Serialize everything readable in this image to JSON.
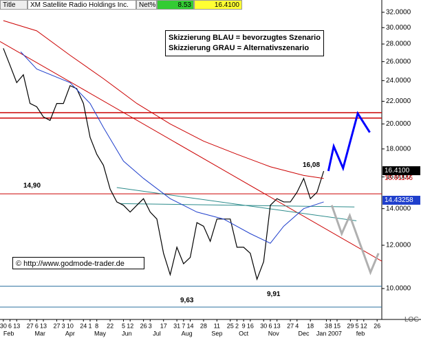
{
  "header": {
    "title_label": "Title",
    "name": "XM Satellite Radio Holdings Inc.",
    "net_label": "Net%",
    "net_value": "8.53",
    "last": "16.4100"
  },
  "legend_box": [
    "Skizzierung BLAU = bevorzugtes Szenario",
    "Skizzierung GRAU = Alternativszenario"
  ],
  "copyright": "© http://www.godmode-trader.de",
  "chart_data": {
    "type": "line",
    "log_scale": true,
    "scale_label": "LOG",
    "xlim": [
      -0.5,
      56.7
    ],
    "ylim": [
      8.78,
      33.7
    ],
    "yticks": [
      {
        "value": 10,
        "label": "10.0000"
      },
      {
        "value": 12,
        "label": "12.0000"
      },
      {
        "value": 14,
        "label": "14.0000"
      },
      {
        "value": 16,
        "label": "16.0000"
      },
      {
        "value": 18,
        "label": "18.0000"
      },
      {
        "value": 20,
        "label": "20.0000"
      },
      {
        "value": 22,
        "label": "22.0000"
      },
      {
        "value": 24,
        "label": "24.0000"
      },
      {
        "value": 26,
        "label": "26.0000"
      },
      {
        "value": 28,
        "label": "28.0000"
      },
      {
        "value": 30,
        "label": "30.0000"
      },
      {
        "value": 32,
        "label": "32.0000"
      }
    ],
    "xticks": [
      {
        "value": 0,
        "label": "30"
      },
      {
        "value": 1,
        "label": "6"
      },
      {
        "value": 2,
        "label": "13"
      },
      {
        "value": 4,
        "label": "27"
      },
      {
        "value": 5,
        "label": "6"
      },
      {
        "value": 6,
        "label": "13"
      },
      {
        "value": 8,
        "label": "27"
      },
      {
        "value": 9,
        "label": "3"
      },
      {
        "value": 10,
        "label": "10"
      },
      {
        "value": 12,
        "label": "24"
      },
      {
        "value": 13,
        "label": "1"
      },
      {
        "value": 14,
        "label": "8"
      },
      {
        "value": 16,
        "label": "22"
      },
      {
        "value": 18,
        "label": "5"
      },
      {
        "value": 19,
        "label": "12"
      },
      {
        "value": 21,
        "label": "26"
      },
      {
        "value": 22,
        "label": "3"
      },
      {
        "value": 24,
        "label": "17"
      },
      {
        "value": 26,
        "label": "31"
      },
      {
        "value": 27,
        "label": "7"
      },
      {
        "value": 28,
        "label": "14"
      },
      {
        "value": 30,
        "label": "28"
      },
      {
        "value": 32,
        "label": "11"
      },
      {
        "value": 34,
        "label": "25"
      },
      {
        "value": 35,
        "label": "2"
      },
      {
        "value": 36,
        "label": "9"
      },
      {
        "value": 37,
        "label": "16"
      },
      {
        "value": 39,
        "label": "30"
      },
      {
        "value": 40,
        "label": "6"
      },
      {
        "value": 41,
        "label": "13"
      },
      {
        "value": 43,
        "label": "27"
      },
      {
        "value": 44,
        "label": "4"
      },
      {
        "value": 46,
        "label": "18"
      },
      {
        "value": 48.4,
        "label": "3"
      },
      {
        "value": 49,
        "label": "8"
      },
      {
        "value": 50,
        "label": "15"
      },
      {
        "value": 52,
        "label": "29"
      },
      {
        "value": 53,
        "label": "5"
      },
      {
        "value": 54,
        "label": "12"
      },
      {
        "value": 56,
        "label": "26"
      }
    ],
    "months": [
      {
        "value": 0.8,
        "label": "Feb"
      },
      {
        "value": 5.5,
        "label": "Mar"
      },
      {
        "value": 10,
        "label": "Apr"
      },
      {
        "value": 14.5,
        "label": "May"
      },
      {
        "value": 18.5,
        "label": "Jun"
      },
      {
        "value": 23,
        "label": "Jul"
      },
      {
        "value": 27.5,
        "label": "Aug"
      },
      {
        "value": 32,
        "label": "Sep"
      },
      {
        "value": 36,
        "label": "Oct"
      },
      {
        "value": 40.5,
        "label": "Nov"
      },
      {
        "value": 45,
        "label": "Dec"
      },
      {
        "value": 48.8,
        "label": "Jan 2007"
      },
      {
        "value": 53.5,
        "label": "feb"
      }
    ],
    "series": [
      {
        "color": "#000000",
        "x": [
          0,
          1,
          2,
          3,
          4,
          5,
          6,
          7,
          8,
          9,
          10,
          11,
          12,
          13,
          14,
          15,
          16,
          17,
          18,
          19,
          20,
          21,
          22,
          23,
          24,
          25,
          26,
          27,
          28,
          29,
          30,
          31,
          32,
          33,
          34,
          35,
          36,
          37,
          38,
          39,
          40,
          41,
          42,
          43,
          44,
          45,
          46,
          47,
          48
        ],
        "values": [
          27.5,
          25.6,
          23.8,
          24.6,
          21.8,
          21.5,
          20.6,
          20.3,
          21.8,
          21.8,
          23.5,
          23.2,
          21.8,
          18.9,
          17.6,
          16.8,
          15.2,
          14.4,
          14.2,
          13.8,
          14.2,
          14.6,
          13.8,
          13.4,
          11.6,
          10.6,
          11.9,
          11.1,
          11.4,
          13.2,
          13.0,
          12.2,
          13.4,
          13.4,
          13.4,
          11.9,
          11.9,
          11.6,
          10.4,
          11.2,
          14.2,
          14.6,
          14.4,
          14.4,
          15.0,
          15.9,
          14.6,
          15.0,
          16.4
        ]
      },
      {
        "color": "#cc0000",
        "x": [
          0,
          5,
          10,
          15,
          20,
          25,
          30,
          35,
          40,
          45,
          48
        ],
        "values": [
          30.9,
          29.6,
          26.7,
          24.2,
          21.8,
          20.0,
          18.6,
          17.6,
          16.7,
          16.1,
          15.9
        ]
      },
      {
        "color": "#1f3fcc",
        "x": [
          2.6,
          5,
          10,
          13,
          15,
          18,
          21,
          25,
          29,
          33,
          37,
          40,
          42,
          45,
          48
        ],
        "values": [
          27.1,
          25.2,
          23.8,
          21.8,
          19.7,
          17.1,
          15.9,
          14.6,
          13.8,
          13.4,
          12.6,
          12.1,
          13.0,
          14.0,
          14.4
        ]
      }
    ],
    "levels": [
      {
        "value": 20.97,
        "color": "#cc0000"
      },
      {
        "value": 20.5,
        "color": "#cc0000"
      },
      {
        "value": 14.9,
        "color": "#cc0000"
      },
      {
        "value": 10.1,
        "color": "#2a6f9e"
      },
      {
        "value": 9.25,
        "color": "#2a6f9e"
      }
    ],
    "trendlines": [
      {
        "color": "#cc0000",
        "x": [
          -0.5,
          62.6
        ],
        "values": [
          28.3,
          10.2
        ]
      },
      {
        "color": "#2a8a8a",
        "x": [
          17,
          52.9
        ],
        "values": [
          15.3,
          13.3
        ]
      },
      {
        "color": "#2a8a8a",
        "x": [
          17.5,
          52.6
        ],
        "values": [
          14.3,
          14.1
        ]
      }
    ],
    "projections": [
      {
        "color": "#0000ff",
        "x": [
          48.7,
          49.5,
          50.9,
          53.1,
          54.9
        ],
        "values": [
          16.4,
          18.2,
          16.6,
          20.9,
          19.3
        ]
      },
      {
        "color": "#b0b0b0",
        "x": [
          49.2,
          50.7,
          51.9,
          55.0,
          56.2
        ],
        "values": [
          14.2,
          12.6,
          13.6,
          10.7,
          11.6
        ]
      }
    ],
    "annotations": [
      "14,90",
      "16,08",
      "9,63",
      "9,91"
    ],
    "price_labels": [
      "16.4100",
      "15.91146",
      "14.43258"
    ]
  }
}
